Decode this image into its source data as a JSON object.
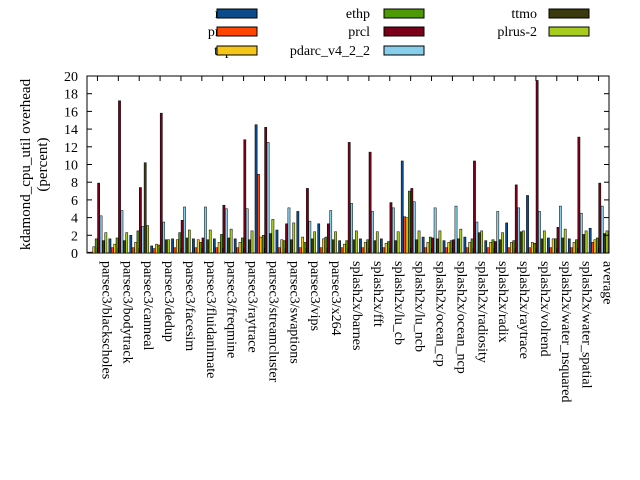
{
  "chart_data": {
    "type": "bar",
    "ylabel": "kdamond_cpu_util overhead\n(percent)",
    "ylim": [
      0,
      20
    ],
    "yticks": [
      0,
      2,
      4,
      6,
      8,
      10,
      12,
      14,
      16,
      18,
      20
    ],
    "grid": false,
    "legend_position": "top",
    "categories": [
      "parsec3/blackscholes",
      "parsec3/bodytrack",
      "parsec3/canneal",
      "parsec3/dedup",
      "parsec3/facesim",
      "parsec3/fluidanimate",
      "parsec3/freqmine",
      "parsec3/raytrace",
      "parsec3/streamcluster",
      "parsec3/swaptions",
      "parsec3/vips",
      "parsec3/x264",
      "splash2x/barnes",
      "splash2x/fft",
      "splash2x/lu_cb",
      "splash2x/lu_ncb",
      "splash2x/ocean_cp",
      "splash2x/ocean_ncp",
      "splash2x/radiosity",
      "splash2x/radix",
      "splash2x/raytrace",
      "splash2x/volrend",
      "splash2x/water_nsquared",
      "splash2x/water_spatial",
      "average"
    ],
    "series": [
      {
        "name": "rec",
        "color": "#0b4a8b",
        "values": [
          0.1,
          1.6,
          2.0,
          0.8,
          1.6,
          1.6,
          1.6,
          1.6,
          14.5,
          2.6,
          4.7,
          3.3,
          1.4,
          1.6,
          1.6,
          10.4,
          1.8,
          1.4,
          1.8,
          1.4,
          3.4,
          6.5,
          1.7,
          1.6,
          2.8
        ]
      },
      {
        "name": "prec",
        "color": "#ff4500",
        "values": [
          0.1,
          0.6,
          0.6,
          0.5,
          0.6,
          0.6,
          0.6,
          0.6,
          8.9,
          0.6,
          0.6,
          0.6,
          0.6,
          0.6,
          0.6,
          4.1,
          0.6,
          0.6,
          0.6,
          0.6,
          0.6,
          0.6,
          0.6,
          0.6,
          1.2
        ]
      },
      {
        "name": "thp",
        "color": "#f5c518",
        "values": [
          0.7,
          1.0,
          1.2,
          1.0,
          1.5,
          1.5,
          1.2,
          1.2,
          1.8,
          1.5,
          1.8,
          1.6,
          1.0,
          1.2,
          1.1,
          4.0,
          1.2,
          1.2,
          1.2,
          1.2,
          1.2,
          1.2,
          1.6,
          1.2,
          1.5
        ]
      },
      {
        "name": "ethp",
        "color": "#4e9a06",
        "values": [
          1.6,
          1.7,
          2.5,
          0.9,
          2.3,
          1.2,
          2.1,
          1.7,
          2.0,
          1.4,
          1.2,
          1.8,
          1.4,
          1.5,
          1.3,
          7.0,
          1.8,
          1.4,
          1.6,
          1.5,
          1.4,
          1.1,
          1.6,
          1.5,
          1.7
        ]
      },
      {
        "name": "prcl",
        "color": "#7a0019",
        "values": [
          7.9,
          17.2,
          7.4,
          15.8,
          3.7,
          1.7,
          5.4,
          12.8,
          14.2,
          3.3,
          7.3,
          3.3,
          12.5,
          11.4,
          5.7,
          7.3,
          1.7,
          1.5,
          10.4,
          1.3,
          7.7,
          19.5,
          2.9,
          13.1,
          7.9
        ]
      },
      {
        "name": "pdarc_v4_2_2",
        "color": "#87ceeb",
        "values": [
          4.2,
          4.8,
          3.0,
          3.5,
          5.2,
          5.2,
          5.0,
          5.0,
          12.5,
          5.1,
          3.6,
          4.8,
          5.6,
          4.7,
          5.1,
          5.8,
          5.1,
          5.3,
          3.5,
          4.7,
          5.1,
          4.7,
          5.3,
          4.5,
          5.3
        ]
      },
      {
        "name": "ttmo",
        "color": "#3a3a0e",
        "values": [
          1.4,
          1.4,
          10.2,
          1.5,
          1.7,
          1.5,
          1.7,
          1.5,
          2.2,
          1.5,
          1.6,
          1.5,
          1.5,
          1.4,
          1.4,
          1.5,
          1.6,
          1.6,
          2.3,
          1.5,
          2.4,
          1.6,
          1.7,
          2.1,
          2.2
        ]
      },
      {
        "name": "plrus-2",
        "color": "#a8cc1e",
        "values": [
          2.3,
          2.3,
          3.1,
          1.5,
          2.6,
          2.6,
          2.7,
          2.5,
          3.8,
          3.4,
          2.4,
          2.4,
          2.5,
          2.4,
          2.4,
          2.5,
          2.5,
          2.7,
          2.5,
          2.3,
          2.5,
          2.5,
          2.7,
          2.5,
          2.5
        ]
      }
    ]
  }
}
